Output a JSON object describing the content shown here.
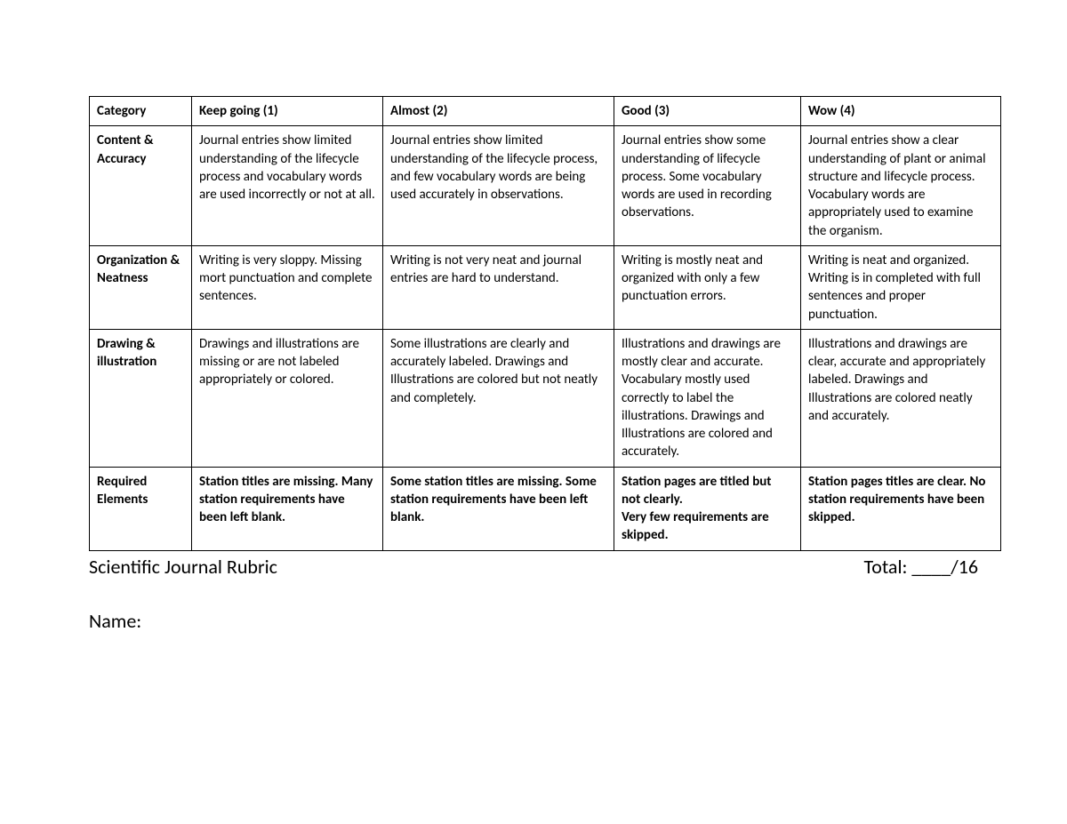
{
  "header": {
    "col0": "Category",
    "col1": "Keep going (1)",
    "col2": "Almost (2)",
    "col3": "Good (3)",
    "col4": "Wow (4)"
  },
  "rows": [
    {
      "category": "Content & Accuracy",
      "c1": "Journal entries show limited understanding of the lifecycle process and vocabulary words are used incorrectly or not at all.",
      "c2": "Journal entries show limited understanding of the lifecycle process, and few vocabulary words are being used accurately in observations.",
      "c3": "Journal entries show some understanding of lifecycle process. Some vocabulary words are used in recording observations.",
      "c4": "Journal entries show a clear understanding of plant or animal structure and lifecycle process. Vocabulary words are appropriately used to examine the organism.",
      "bold": false
    },
    {
      "category": "Organization & Neatness",
      "c1": "Writing is very sloppy. Missing mort punctuation and complete sentences.",
      "c2": "Writing is not very neat and journal entries are hard to understand.",
      "c3": "Writing is mostly neat and organized with only a few punctuation errors.",
      "c4": "Writing is neat and organized. Writing is in completed with full sentences and proper punctuation.",
      "bold": false
    },
    {
      "category": "Drawing & illustration",
      "c1": "Drawings and illustrations are missing or are not labeled appropriately or colored.",
      "c2": "Some illustrations are clearly and accurately labeled. Drawings and Illustrations are colored but not neatly and completely.",
      "c3": "Illustrations and drawings are mostly clear and accurate. Vocabulary mostly used correctly to label the illustrations. Drawings and Illustrations are colored and accurately.",
      "c4": "Illustrations and drawings are clear, accurate and appropriately labeled. Drawings and Illustrations are colored neatly and accurately.",
      "bold": false
    },
    {
      "category": "Required Elements",
      "c1": "Station titles are missing. Many station requirements have been left blank.",
      "c2": "Some station titles are missing. Some station requirements have been left blank.",
      "c3": "Station pages are titled but not clearly.\nVery few requirements are skipped.",
      "c4": "Station pages titles are clear. No station requirements have been skipped.",
      "bold": true
    }
  ],
  "footer": {
    "title": "Scientific Journal Rubric",
    "total": "Total: ____/16"
  },
  "name_label": "Name:"
}
